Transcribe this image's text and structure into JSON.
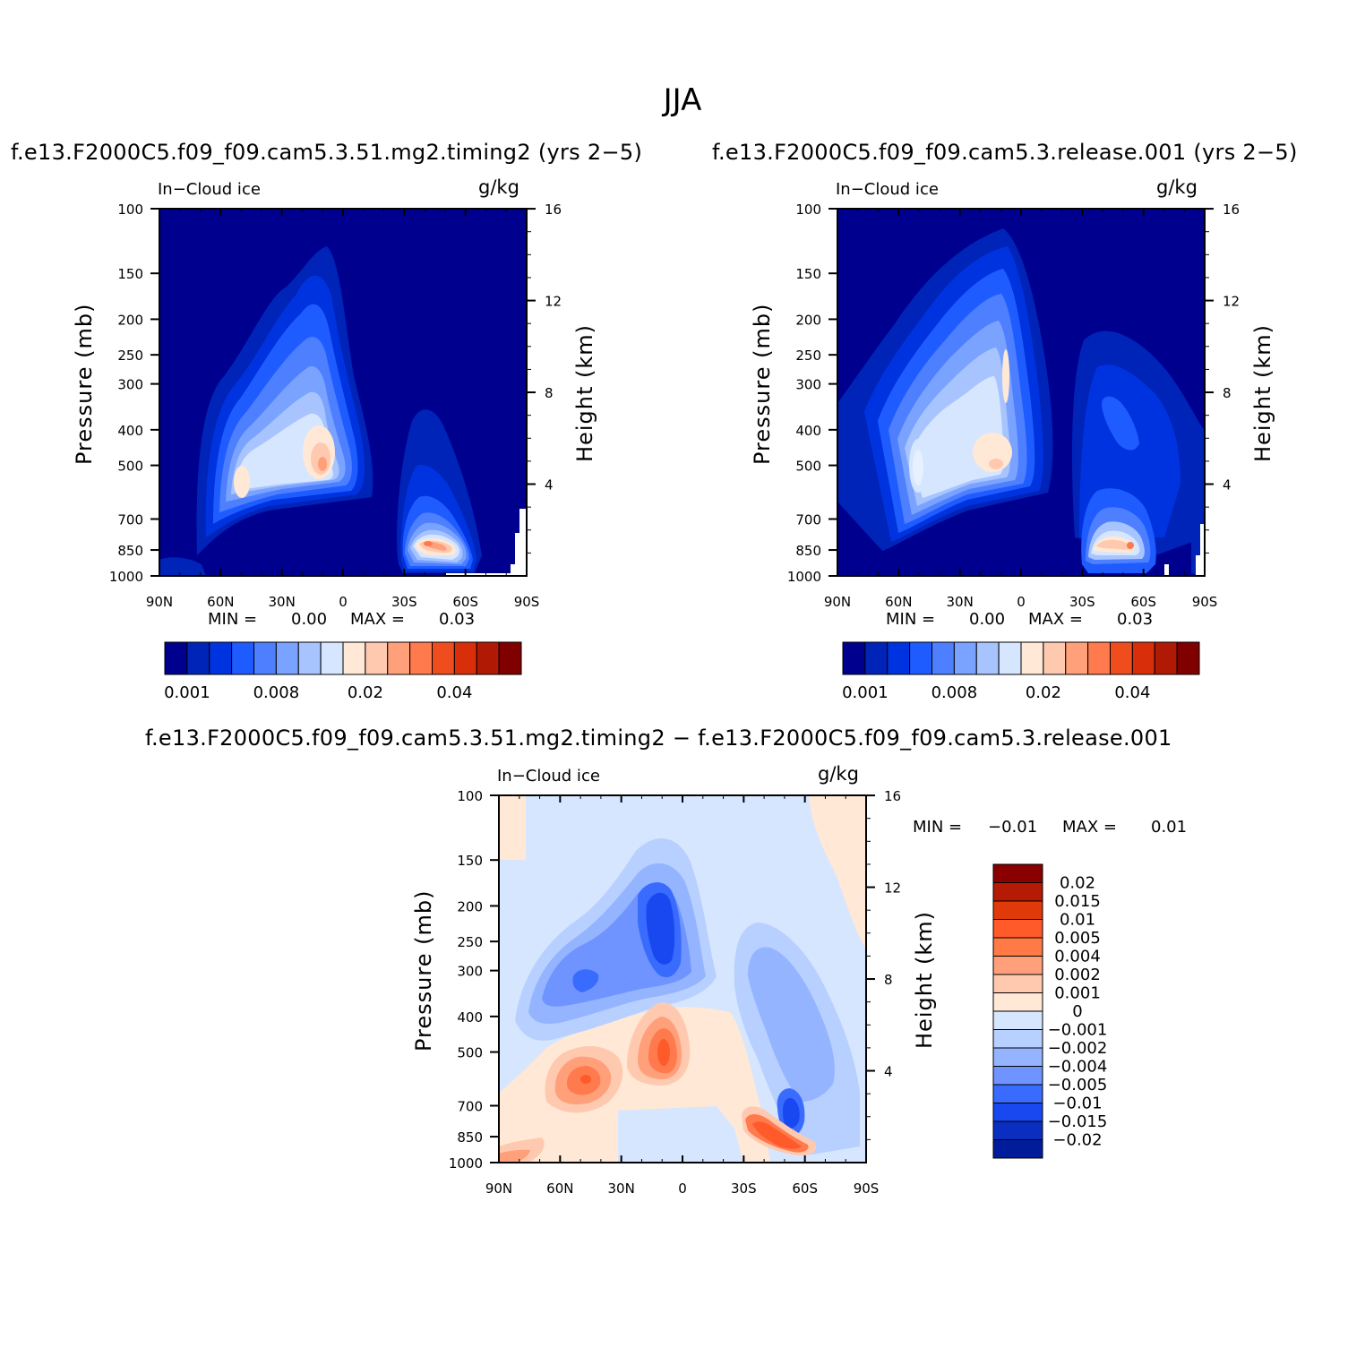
{
  "title": "JJA",
  "panels": [
    {
      "title": "f.e13.F2000C5.f09_f09.cam5.3.51.mg2.timing2 (yrs 2−5)",
      "left_label": "In−Cloud ice",
      "units": "g/kg",
      "min_label": "MIN =",
      "min_value": "0.00",
      "max_label": "MAX =",
      "max_value": "0.03"
    },
    {
      "title": "f.e13.F2000C5.f09_f09.cam5.3.release.001 (yrs 2−5)",
      "left_label": "In−Cloud ice",
      "units": "g/kg",
      "min_label": "MIN =",
      "min_value": "0.00",
      "max_label": "MAX =",
      "max_value": "0.03"
    },
    {
      "title": "f.e13.F2000C5.f09_f09.cam5.3.51.mg2.timing2 − f.e13.F2000C5.f09_f09.cam5.3.release.001",
      "left_label": "In−Cloud ice",
      "units": "g/kg",
      "min_label": "MIN =",
      "min_value": "−0.01",
      "max_label": "MAX =",
      "max_value": "0.01"
    }
  ],
  "axes": {
    "ylabel_left": "Pressure (mb)",
    "ylabel_right": "Height (km)",
    "x_ticks": [
      "90N",
      "60N",
      "30N",
      "0",
      "30S",
      "60S",
      "90S"
    ],
    "pressure_ticks": [
      "100",
      "150",
      "200",
      "250",
      "300",
      "400",
      "500",
      "700",
      "850",
      "1000"
    ],
    "height_ticks": [
      "16",
      "12",
      "8",
      "4"
    ]
  },
  "colorbars": {
    "abs_labels": [
      "0.001",
      "0.008",
      "0.02",
      "0.04"
    ],
    "abs_colors": [
      "#00008f",
      "#0024b8",
      "#0033e0",
      "#1f5cff",
      "#4d7fff",
      "#7aa3ff",
      "#a8c4ff",
      "#d6e6ff",
      "#ffe8d6",
      "#ffc9b0",
      "#ffa07a",
      "#ff7a4d",
      "#f04d1f",
      "#d92e0a",
      "#b01a05",
      "#800000"
    ],
    "diff_labels": [
      "0.02",
      "0.015",
      "0.01",
      "0.005",
      "0.004",
      "0.002",
      "0.001",
      "0",
      "−0.001",
      "−0.002",
      "−0.004",
      "−0.005",
      "−0.01",
      "−0.015",
      "−0.02"
    ],
    "diff_colors": [
      "#8a0000",
      "#b51a05",
      "#e03a0a",
      "#ff5a2a",
      "#ff7a45",
      "#ffa07a",
      "#ffc9b0",
      "#ffe8d6",
      "#d6e6ff",
      "#b8d0ff",
      "#94b4ff",
      "#6f94ff",
      "#3a6bff",
      "#1a48f0",
      "#0a2ec0",
      "#001c9a"
    ]
  },
  "chart_data": [
    {
      "type": "heatmap",
      "title": "f.e13.F2000C5.f09_f09.cam5.3.51.mg2.timing2 (yrs 2−5)",
      "variable": "In−Cloud ice",
      "units": "g/kg",
      "xlabel": "",
      "ylabel": "Pressure (mb)",
      "ylabel_right": "Height (km)",
      "xlim": [
        90,
        -90
      ],
      "ylim": [
        1000,
        100
      ],
      "y_scale": "log",
      "min": 0.0,
      "max": 0.03,
      "features": [
        {
          "lat": 28,
          "p": 200,
          "value": 0.001
        },
        {
          "lat": 20,
          "p": 300,
          "value": 0.004
        },
        {
          "lat": 8,
          "p": 500,
          "value": 0.02
        },
        {
          "lat": 50,
          "p": 570,
          "value": 0.01
        },
        {
          "lat": -45,
          "p": 830,
          "value": 0.03
        }
      ]
    },
    {
      "type": "heatmap",
      "title": "f.e13.F2000C5.f09_f09.cam5.3.release.001 (yrs 2−5)",
      "variable": "In−Cloud ice",
      "units": "g/kg",
      "xlabel": "",
      "ylabel": "Pressure (mb)",
      "ylabel_right": "Height (km)",
      "xlim": [
        90,
        -90
      ],
      "ylim": [
        1000,
        100
      ],
      "y_scale": "log",
      "min": 0.0,
      "max": 0.03,
      "features": [
        {
          "lat": 10,
          "p": 200,
          "value": 0.008
        },
        {
          "lat": 8,
          "p": 350,
          "value": 0.02
        },
        {
          "lat": 12,
          "p": 500,
          "value": 0.015
        },
        {
          "lat": 55,
          "p": 500,
          "value": 0.01
        },
        {
          "lat": -45,
          "p": 820,
          "value": 0.02
        },
        {
          "lat": -45,
          "p": 400,
          "value": 0.004
        }
      ]
    },
    {
      "type": "heatmap",
      "title": "f.e13.F2000C5.f09_f09.cam5.3.51.mg2.timing2 − f.e13.F2000C5.f09_f09.cam5.3.release.001",
      "variable": "In−Cloud ice",
      "units": "g/kg",
      "xlabel": "",
      "ylabel": "Pressure (mb)",
      "ylabel_right": "Height (km)",
      "xlim": [
        90,
        -90
      ],
      "ylim": [
        1000,
        100
      ],
      "y_scale": "log",
      "min": -0.01,
      "max": 0.01,
      "features": [
        {
          "lat": 10,
          "p": 220,
          "value": -0.01
        },
        {
          "lat": 50,
          "p": 330,
          "value": -0.005
        },
        {
          "lat": 10,
          "p": 520,
          "value": 0.01
        },
        {
          "lat": 48,
          "p": 600,
          "value": 0.005
        },
        {
          "lat": -50,
          "p": 730,
          "value": -0.01
        },
        {
          "lat": -42,
          "p": 860,
          "value": 0.01
        }
      ]
    }
  ]
}
